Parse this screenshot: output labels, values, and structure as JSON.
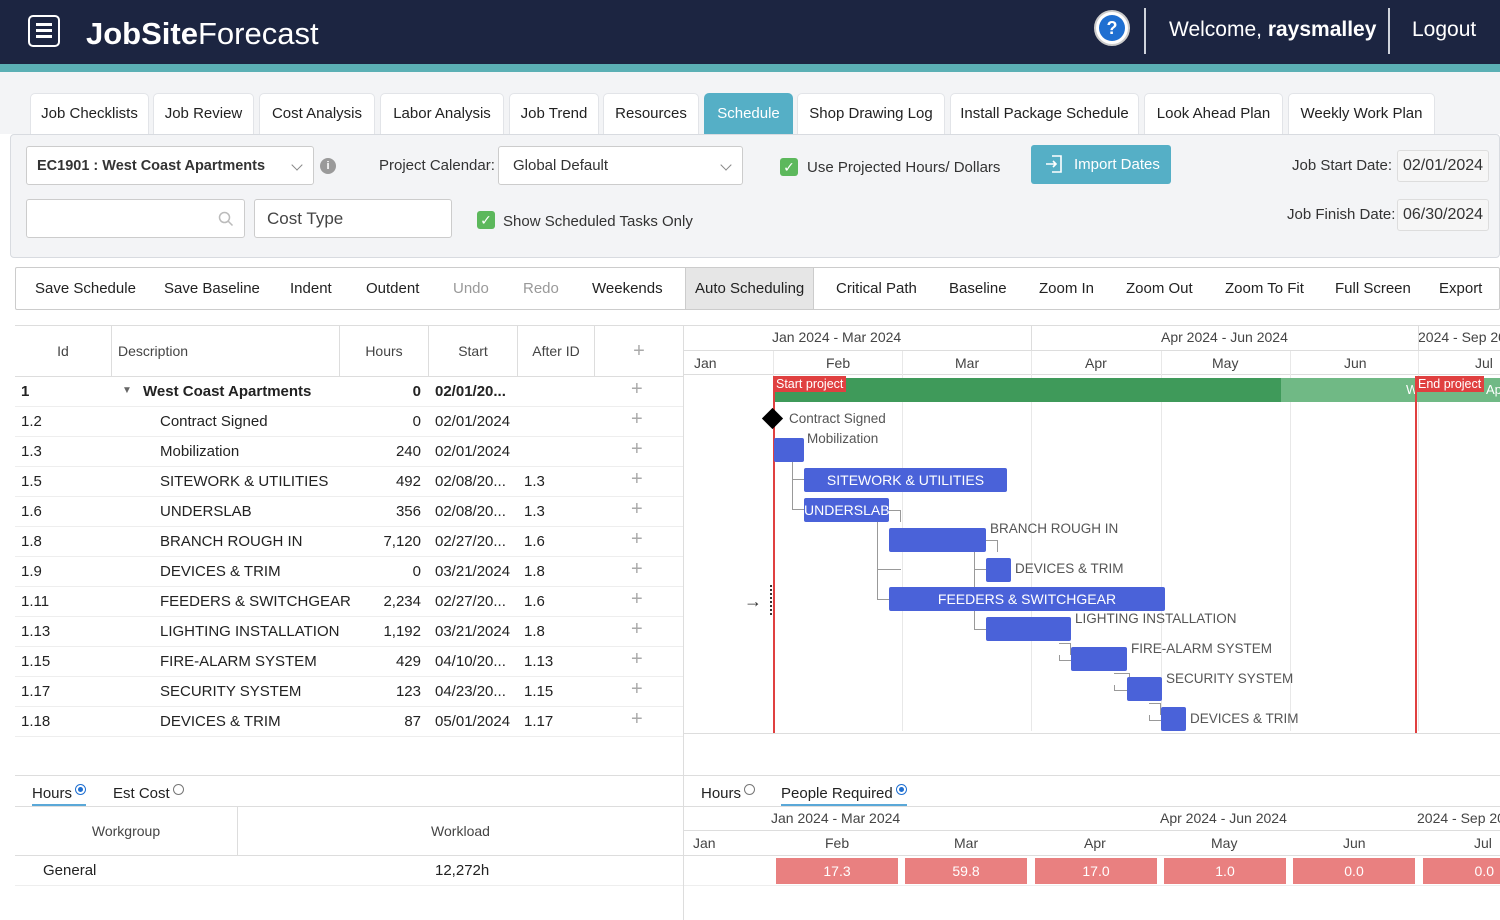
{
  "header": {
    "logo_bold": "JobSite",
    "logo_light": "Forecast",
    "welcome_prefix": "Welcome,",
    "username": "raysmalley",
    "logout": "Logout",
    "help_glyph": "?"
  },
  "tabs": [
    "Job Checklists",
    "Job Review",
    "Cost Analysis",
    "Labor Analysis",
    "Job Trend",
    "Resources",
    "Schedule",
    "Shop Drawing Log",
    "Install Package Schedule",
    "Look Ahead Plan",
    "Weekly Work Plan"
  ],
  "filters": {
    "project": "EC1901 : West Coast Apartments",
    "info_glyph": "i",
    "calendar_label": "Project Calendar:",
    "calendar_value": "Global Default",
    "use_projected": "Use Projected Hours/ Dollars",
    "import_dates": "Import Dates",
    "job_start_label": "Job Start Date:",
    "job_start": "02/01/2024",
    "job_finish_label": "Job Finish Date:",
    "job_finish": "06/30/2024",
    "search_value": "",
    "cost_type": "Cost Type",
    "scheduled_only": "Show Scheduled Tasks Only",
    "check_glyph": "✓"
  },
  "toolbar": [
    "Save Schedule",
    "Save Baseline",
    "Indent",
    "Outdent",
    "Undo",
    "Redo",
    "Weekends",
    "Auto Scheduling",
    "Critical Path",
    "Baseline",
    "Zoom In",
    "Zoom Out",
    "Zoom To Fit",
    "Full Screen",
    "Export"
  ],
  "grid": {
    "columns": {
      "id": "Id",
      "description": "Description",
      "hours": "Hours",
      "start": "Start",
      "after": "After ID",
      "add": "+"
    },
    "rows": [
      {
        "id": "1",
        "desc": "West Coast Apartments",
        "hours": "0",
        "start": "02/01/20...",
        "after": ""
      },
      {
        "id": "1.2",
        "desc": "Contract Signed",
        "hours": "0",
        "start": "02/01/2024",
        "after": ""
      },
      {
        "id": "1.3",
        "desc": "Mobilization",
        "hours": "240",
        "start": "02/01/2024",
        "after": ""
      },
      {
        "id": "1.5",
        "desc": "SITEWORK & UTILITIES",
        "hours": "492",
        "start": "02/08/20...",
        "after": "1.3"
      },
      {
        "id": "1.6",
        "desc": "UNDERSLAB",
        "hours": "356",
        "start": "02/08/20...",
        "after": "1.3"
      },
      {
        "id": "1.8",
        "desc": "BRANCH ROUGH IN",
        "hours": "7,120",
        "start": "02/27/20...",
        "after": "1.6"
      },
      {
        "id": "1.9",
        "desc": "DEVICES & TRIM",
        "hours": "0",
        "start": "03/21/2024",
        "after": "1.8"
      },
      {
        "id": "1.11",
        "desc": "FEEDERS & SWITCHGEAR",
        "hours": "2,234",
        "start": "02/27/20...",
        "after": "1.6"
      },
      {
        "id": "1.13",
        "desc": "LIGHTING INSTALLATION",
        "hours": "1,192",
        "start": "03/21/2024",
        "after": "1.8"
      },
      {
        "id": "1.15",
        "desc": "FIRE-ALARM SYSTEM",
        "hours": "429",
        "start": "04/10/20...",
        "after": "1.13"
      },
      {
        "id": "1.17",
        "desc": "SECURITY SYSTEM",
        "hours": "123",
        "start": "04/23/20...",
        "after": "1.15"
      },
      {
        "id": "1.18",
        "desc": "DEVICES & TRIM",
        "hours": "87",
        "start": "05/01/2024",
        "after": "1.17"
      }
    ]
  },
  "gantt": {
    "quarters": [
      "Jan 2024 - Mar 2024",
      "Apr 2024 - Jun 2024",
      "2024 - Sep 20"
    ],
    "months": [
      "Jan",
      "Feb",
      "Mar",
      "Apr",
      "May",
      "Jun",
      "Jul"
    ],
    "start_marker": "Start project",
    "end_marker": "End project",
    "project_bar_clip_left": "W",
    "project_bar_clip_right": "Ap",
    "labels": {
      "contract": "Contract Signed",
      "mobilization": "Mobilization",
      "sitework": "SITEWORK & UTILITIES",
      "underslab": "UNDERSLAB",
      "branch": "BRANCH ROUGH IN",
      "devices1": "DEVICES & TRIM",
      "feeders": "FEEDERS & SWITCHGEAR",
      "lighting": "LIGHTING INSTALLATION",
      "firealarm": "FIRE-ALARM SYSTEM",
      "security": "SECURITY SYSTEM",
      "devices2": "DEVICES & TRIM"
    },
    "colors": {
      "task": "#4a62d9",
      "project": "#3f9a5a",
      "marker": "#e04040"
    }
  },
  "resources": {
    "left_tabs": {
      "hours": "Hours",
      "est_cost": "Est Cost"
    },
    "right_tabs": {
      "hours": "Hours",
      "people": "People Required"
    },
    "columns": {
      "workgroup": "Workgroup",
      "workload": "Workload"
    },
    "row": {
      "workgroup": "General",
      "workload": "12,272h"
    },
    "values": [
      "17.3",
      "59.8",
      "17.0",
      "1.0",
      "0.0",
      "0.0"
    ]
  }
}
